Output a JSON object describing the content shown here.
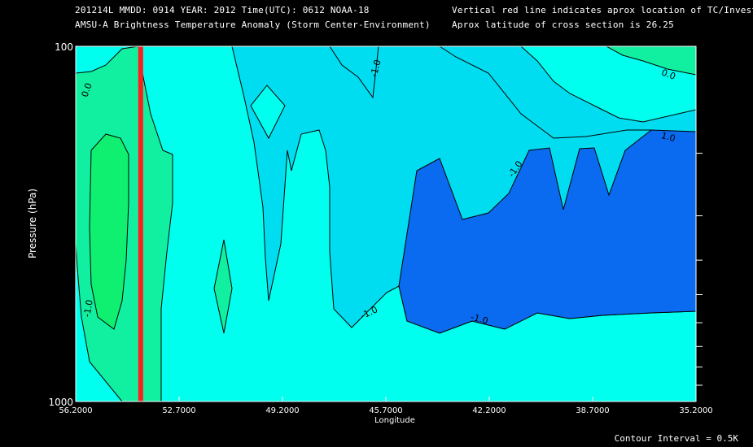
{
  "header": {
    "line1": "201214L  MMDD: 0914 YEAR: 2012 Time(UTC): 0612 NOAA-18",
    "line2": "AMSU-A Brightness Temperature Anomaly (Storm Center-Environment)",
    "line3": "Vertical red line indicates aprox location of TC/Invest",
    "line4": "Aprox latitude of cross section is 26.25"
  },
  "footer": {
    "contour_interval": "Contour Interval = 0.5K"
  },
  "colors": {
    "background": "#000000",
    "deep_blue": "#0A6AF0",
    "blue": "#00B4F0",
    "light_cyan": "#00DDF0",
    "cyan": "#00FFEE",
    "green_light": "#10F0A0",
    "green": "#10F070",
    "tc_line": "#FF1E1E"
  },
  "chart_data": {
    "type": "contour",
    "title": "AMSU-A Brightness Temperature Anomaly (Storm Center-Environment)",
    "xlabel": "Longitude",
    "ylabel": "Pressure (hPa)",
    "x_ticks": [
      "56.2000",
      "52.7000",
      "49.2000",
      "45.7000",
      "42.2000",
      "38.7000",
      "35.2000"
    ],
    "x_range": [
      56.2,
      35.2
    ],
    "y_ticks": [
      "100",
      "1000"
    ],
    "y_range": [
      1000,
      100
    ],
    "y_scale": "log",
    "tc_longitude": 54.0,
    "contour_labels": [
      "0.0",
      "-1.0",
      "0.0",
      "-1.0",
      "-1.0",
      "-1.0",
      "-1.0",
      "1.0"
    ],
    "contour_interval_K": 0.5
  }
}
